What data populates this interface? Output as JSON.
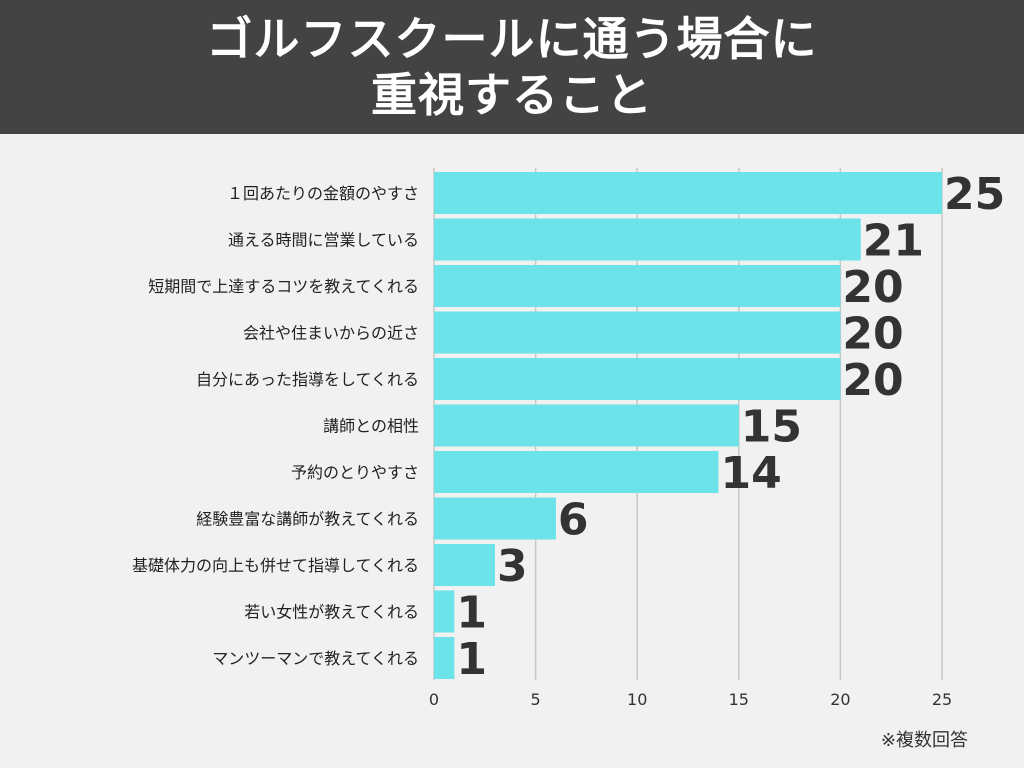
{
  "header": {
    "title_line1": "ゴルフスクールに通う場合に",
    "title_line2": "重視すること"
  },
  "note": "※複数回答",
  "colors": {
    "bar": "#6be3e8",
    "value_text": "#333333",
    "grid": "#c8c8c8",
    "header_bg": "#434343"
  },
  "chart_data": {
    "type": "bar",
    "orientation": "horizontal",
    "title": "ゴルフスクールに通う場合に重視すること",
    "categories": [
      "１回あたりの金額のやすさ",
      "通える時間に営業している",
      "短期間で上達するコツを教えてくれる",
      "会社や住まいからの近さ",
      "自分にあった指導をしてくれる",
      "講師との相性",
      "予約のとりやすさ",
      "経験豊富な講師が教えてくれる",
      "基礎体力の向上も併せて指導してくれる",
      "若い女性が教えてくれる",
      "マンツーマンで教えてくれる"
    ],
    "values": [
      25,
      21,
      20,
      20,
      20,
      15,
      14,
      6,
      3,
      1,
      1
    ],
    "xlim": [
      0,
      25
    ],
    "xticks": [
      0,
      5,
      10,
      15,
      20,
      25
    ],
    "grid": true,
    "data_labels": true
  }
}
